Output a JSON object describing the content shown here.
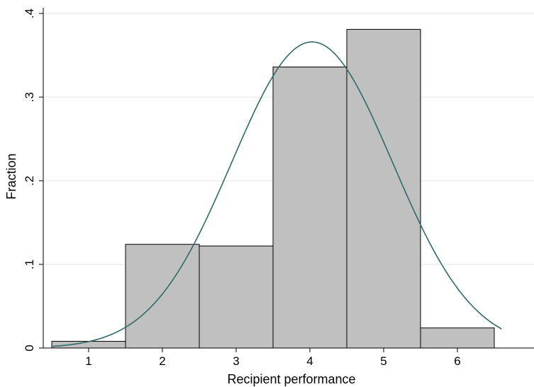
{
  "chart_data": {
    "type": "bar",
    "subtype": "histogram-with-normal-density",
    "xlabel": "Recipient performance",
    "ylabel": "Fraction",
    "xlim": [
      0.5,
      6.5
    ],
    "ylim": [
      0,
      0.4
    ],
    "x_ticks": [
      {
        "value": 1,
        "label": "1"
      },
      {
        "value": 2,
        "label": "2"
      },
      {
        "value": 3,
        "label": "3"
      },
      {
        "value": 4,
        "label": "4"
      },
      {
        "value": 5,
        "label": "5"
      },
      {
        "value": 6,
        "label": "6"
      }
    ],
    "y_ticks": [
      {
        "value": 0,
        "label": "0"
      },
      {
        "value": 0.1,
        "label": ".1"
      },
      {
        "value": 0.2,
        "label": ".2"
      },
      {
        "value": 0.3,
        "label": ".3"
      },
      {
        "value": 0.4,
        "label": ".4"
      }
    ],
    "categories": [
      "1",
      "2",
      "3",
      "4",
      "5",
      "6"
    ],
    "bins": [
      {
        "center": 1,
        "value": 0.008
      },
      {
        "center": 2,
        "value": 0.124
      },
      {
        "center": 3,
        "value": 0.122
      },
      {
        "center": 4,
        "value": 0.336
      },
      {
        "center": 5,
        "value": 0.381
      },
      {
        "center": 6,
        "value": 0.024
      }
    ],
    "bin_width": 1,
    "density_curve": {
      "mean": 4.03,
      "sd": 1.09
    },
    "grid": true,
    "colors": {
      "bar_fill": "#c0c0c0",
      "bar_stroke": "#000000",
      "curve": "#2f6b66",
      "grid": "#e6e6e6"
    }
  }
}
